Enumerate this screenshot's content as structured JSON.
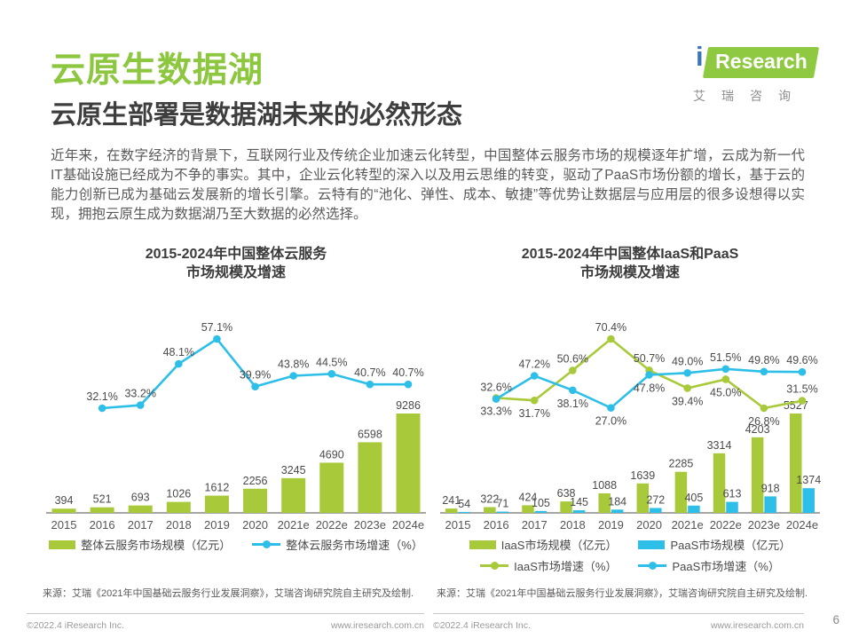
{
  "page": {
    "title": "云原生数据湖",
    "subtitle": "云原生部署是数据湖未来的必然形态",
    "paragraph": "近年来，在数字经济的背景下，互联网行业及传统企业加速云化转型，中国整体云服务市场的规模逐年扩增，云成为新一代IT基础设施已经成为不争的事实。其中，企业云化转型的深入以及用云思维的转变，驱动了PaaS市场份额的增长，基于云的能力创新已成为基础云发展新的增长引擎。云特有的“池化、弹性、成本、敏捷”等优势让数据层与应用层的很多设想得以实现，拥抱云原生成为数据湖乃至大数据的必然选择。",
    "page_number": "6"
  },
  "logo": {
    "i": "i",
    "wordmark": "Research",
    "chinese": "艾瑞咨询"
  },
  "colors": {
    "title_green": "#8dc63f",
    "green": "#a8ca3a",
    "blue": "#2ebfe9",
    "logo_green": "#8fc841",
    "logo_blue": "#3b74b8",
    "axis_gray": "#a6a6a6"
  },
  "chart_data": [
    {
      "type": "bar+line",
      "title": "2015-2024年中国整体云服务\n市场规模及增速",
      "categories": [
        "2015",
        "2016",
        "2017",
        "2018",
        "2019",
        "2020",
        "2021e",
        "2022e",
        "2023e",
        "2024e"
      ],
      "bar_series": [
        {
          "name": "整体云服务市场规模（亿元）",
          "color": "green",
          "values": [
            394,
            521,
            693,
            1026,
            1612,
            2256,
            3245,
            4690,
            6598,
            9286
          ]
        }
      ],
      "line_series": [
        {
          "name": "整体云服务市场增速（%）",
          "color": "blue",
          "values": [
            null,
            32.1,
            33.2,
            48.1,
            57.1,
            39.9,
            43.8,
            44.5,
            40.7,
            40.7
          ],
          "label_sides": [
            "",
            "above",
            "above",
            "above",
            "above",
            "above",
            "above",
            "above",
            "above",
            "above"
          ]
        }
      ],
      "legend_position": "bottom",
      "grid": false,
      "source": "来源：艾瑞《2021年中国基础云服务行业发展洞察》，艾瑞咨询研究院自主研究及绘制."
    },
    {
      "type": "bar+line",
      "title": "2015-2024年中国整体IaaS和PaaS\n市场规模及增速",
      "categories": [
        "2015",
        "2016",
        "2017",
        "2018",
        "2019",
        "2020",
        "2021e",
        "2022e",
        "2023e",
        "2024e"
      ],
      "bar_series": [
        {
          "name": "IaaS市场规模（亿元）",
          "color": "green",
          "values": [
            241,
            322,
            424,
            638,
            1088,
            1639,
            2285,
            3314,
            4203,
            5527
          ]
        },
        {
          "name": "PaaS市场规模（亿元）",
          "color": "blue",
          "values": [
            54,
            71,
            105,
            145,
            184,
            272,
            405,
            613,
            918,
            1374
          ]
        }
      ],
      "line_series": [
        {
          "name": "IaaS市场增速（%）",
          "color": "green",
          "values": [
            null,
            33.3,
            31.7,
            50.6,
            70.4,
            50.7,
            39.4,
            45.0,
            26.8,
            31.5
          ],
          "label_sides": [
            "",
            "below",
            "below",
            "above",
            "above",
            "above",
            "below",
            "below",
            "below",
            "above"
          ]
        },
        {
          "name": "PaaS市场增速（%）",
          "color": "blue",
          "values": [
            null,
            32.6,
            47.2,
            38.1,
            27.0,
            47.8,
            49.0,
            51.5,
            49.8,
            49.6
          ],
          "label_sides": [
            "",
            "above",
            "above",
            "below",
            "below",
            "below",
            "above",
            "above",
            "above",
            "above"
          ]
        }
      ],
      "legend_position": "bottom",
      "grid": false,
      "source": "来源：艾瑞《2021年中国基础云服务行业发展洞察》，艾瑞咨询研究院自主研究及绘制."
    }
  ],
  "footer": {
    "copyright": "©2022.4 iResearch Inc.",
    "website": "www.iresearch.com.cn"
  }
}
